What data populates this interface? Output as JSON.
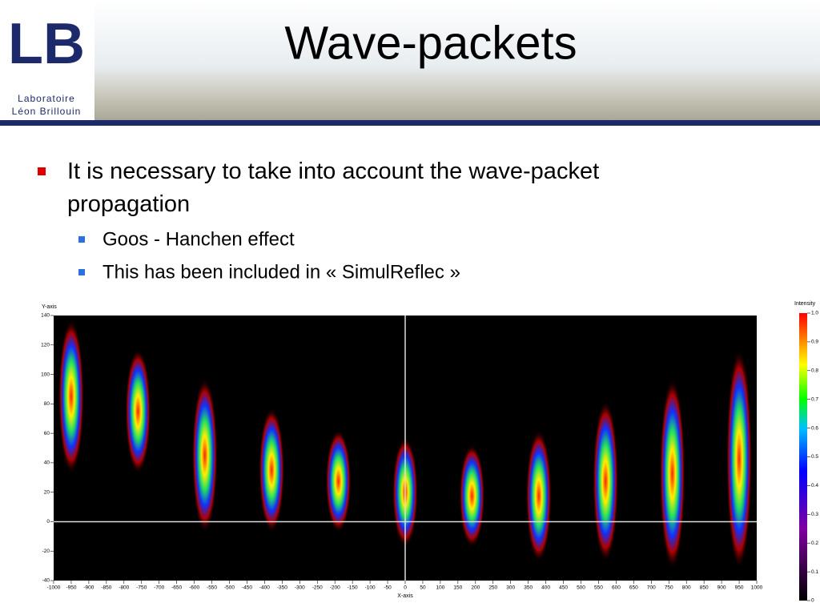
{
  "header": {
    "title": "Wave-packets",
    "logo": {
      "mark": "LB",
      "line1": "Laboratoire",
      "line2": "Léon Brillouin"
    }
  },
  "bullets": [
    {
      "text": "It is necessary to take into account the wave-packet propagation",
      "sub": [
        "Goos - Hanchen effect",
        "This has been included in « SimulReflec »"
      ]
    }
  ],
  "figure": {
    "y_axis_label": "Y-axis",
    "x_axis_label": "X-axis",
    "xlim": [
      -1000,
      1000
    ],
    "ylim": [
      -40,
      140
    ],
    "xticks": [
      -1000,
      -950,
      -900,
      -850,
      -800,
      -750,
      -700,
      -650,
      -600,
      -550,
      -500,
      -450,
      -400,
      -350,
      -300,
      -250,
      -200,
      -150,
      -100,
      -50,
      0,
      50,
      100,
      150,
      200,
      250,
      300,
      350,
      400,
      450,
      500,
      550,
      600,
      650,
      700,
      750,
      800,
      850,
      900,
      950,
      1000
    ],
    "yticks": [
      -40,
      -20,
      0,
      20,
      40,
      60,
      80,
      100,
      120,
      140
    ],
    "packets": [
      {
        "x": -950,
        "ymin": 40,
        "ymax": 130
      },
      {
        "x": -760,
        "ymin": 40,
        "ymax": 110
      },
      {
        "x": -570,
        "ymin": 0,
        "ymax": 90
      },
      {
        "x": -380,
        "ymin": 0,
        "ymax": 70
      },
      {
        "x": -190,
        "ymin": 0,
        "ymax": 55
      },
      {
        "x": 0,
        "ymin": -10,
        "ymax": 50
      },
      {
        "x": 190,
        "ymin": -10,
        "ymax": 45
      },
      {
        "x": 380,
        "ymin": -20,
        "ymax": 55
      },
      {
        "x": 570,
        "ymin": -20,
        "ymax": 75
      },
      {
        "x": 760,
        "ymin": -25,
        "ymax": 90
      },
      {
        "x": 950,
        "ymin": -25,
        "ymax": 110
      }
    ],
    "colorbar": {
      "title": "Intensity",
      "lim": [
        0,
        1
      ],
      "ticks": [
        {
          "value": 1,
          "label": "1.0"
        },
        0.9,
        0.8,
        0.7,
        0.6,
        0.5,
        0.4,
        0.3,
        0.2,
        0.1,
        0
      ]
    }
  }
}
